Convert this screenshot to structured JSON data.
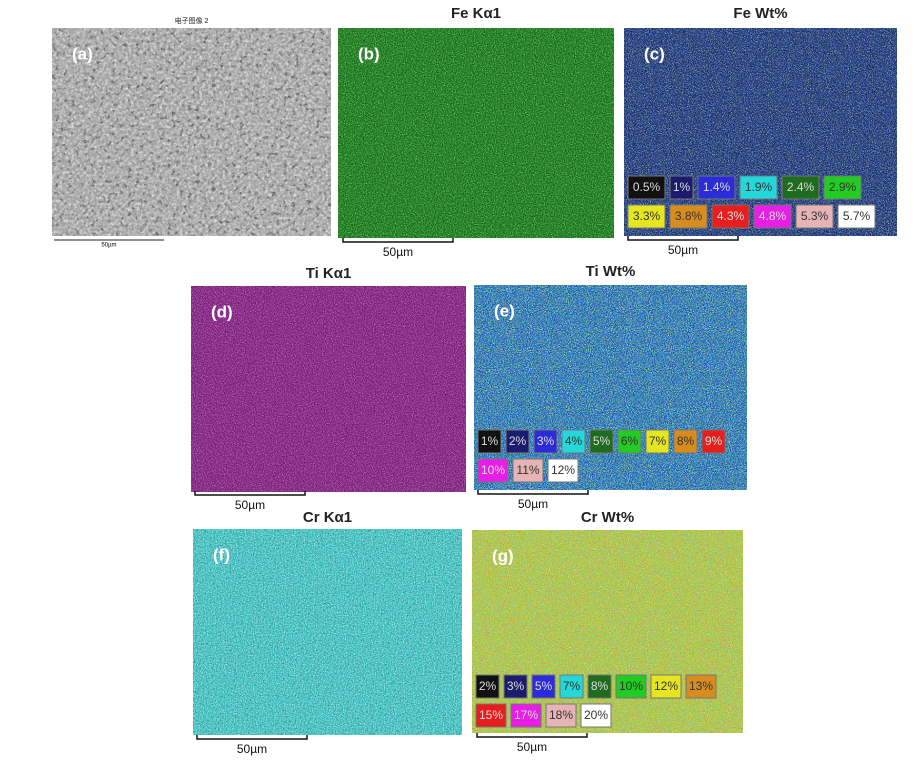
{
  "panels": [
    {
      "label": "(a)",
      "title": "电子图像 2",
      "scale_bar": "50µm",
      "legend": []
    },
    {
      "label": "(b)",
      "title": "Fe Kα1",
      "scale_bar": "50µm",
      "legend": []
    },
    {
      "label": "(c)",
      "title": "Fe Wt%",
      "scale_bar": "50µm",
      "legend": [
        {
          "text": "0.5%",
          "color": "#111111"
        },
        {
          "text": "1%",
          "color": "#1c1c6e"
        },
        {
          "text": "1.4%",
          "color": "#2b2bd8"
        },
        {
          "text": "1.9%",
          "color": "#22d8d8"
        },
        {
          "text": "2.4%",
          "color": "#1f6b1f"
        },
        {
          "text": "2.9%",
          "color": "#22cc22"
        },
        {
          "text": "3.3%",
          "color": "#e6e61e"
        },
        {
          "text": "3.8%",
          "color": "#d98c1e"
        },
        {
          "text": "4.3%",
          "color": "#e61e1e"
        },
        {
          "text": "4.8%",
          "color": "#e61ee6"
        },
        {
          "text": "5.3%",
          "color": "#e6b4b4"
        },
        {
          "text": "5.7%",
          "color": "#ffffff"
        }
      ]
    },
    {
      "label": "(d)",
      "title": "Ti Kα1",
      "scale_bar": "50µm",
      "legend": []
    },
    {
      "label": "(e)",
      "title": "Ti Wt%",
      "scale_bar": "50µm",
      "legend": [
        {
          "text": "1%",
          "color": "#111111"
        },
        {
          "text": "2%",
          "color": "#1c1c6e"
        },
        {
          "text": "3%",
          "color": "#2b2bd8"
        },
        {
          "text": "4%",
          "color": "#22d8d8"
        },
        {
          "text": "5%",
          "color": "#1f6b1f"
        },
        {
          "text": "6%",
          "color": "#22cc22"
        },
        {
          "text": "7%",
          "color": "#e6e61e"
        },
        {
          "text": "8%",
          "color": "#d98c1e"
        },
        {
          "text": "9%",
          "color": "#e61e1e"
        },
        {
          "text": "10%",
          "color": "#e61ee6"
        },
        {
          "text": "11%",
          "color": "#e6b4b4"
        },
        {
          "text": "12%",
          "color": "#ffffff"
        }
      ]
    },
    {
      "label": "(f)",
      "title": "Cr Kα1",
      "scale_bar": "50µm",
      "legend": []
    },
    {
      "label": "(g)",
      "title": "Cr Wt%",
      "scale_bar": "50µm",
      "legend": [
        {
          "text": "2%",
          "color": "#111111"
        },
        {
          "text": "3%",
          "color": "#1c1c6e"
        },
        {
          "text": "5%",
          "color": "#2b2bd8"
        },
        {
          "text": "7%",
          "color": "#22d8d8"
        },
        {
          "text": "8%",
          "color": "#1f6b1f"
        },
        {
          "text": "10%",
          "color": "#22cc22"
        },
        {
          "text": "12%",
          "color": "#e6e61e"
        },
        {
          "text": "13%",
          "color": "#d98c1e"
        },
        {
          "text": "15%",
          "color": "#e61e1e"
        },
        {
          "text": "17%",
          "color": "#e61ee6"
        },
        {
          "text": "18%",
          "color": "#e6b4b4"
        },
        {
          "text": "20%",
          "color": "#ffffff"
        }
      ]
    }
  ]
}
